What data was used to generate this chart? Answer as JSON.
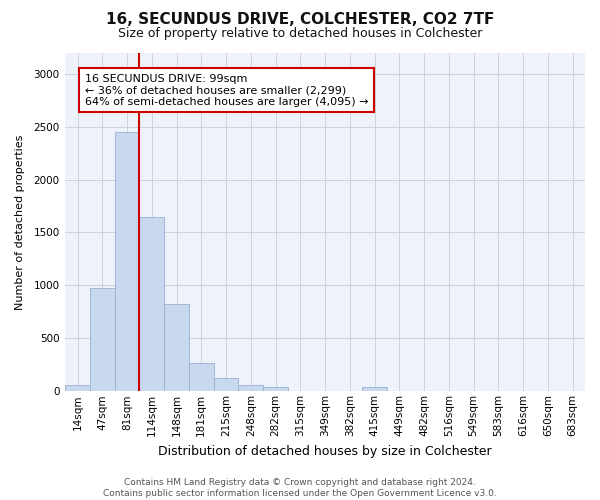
{
  "title_line1": "16, SECUNDUS DRIVE, COLCHESTER, CO2 7TF",
  "title_line2": "Size of property relative to detached houses in Colchester",
  "xlabel": "Distribution of detached houses by size in Colchester",
  "ylabel": "Number of detached properties",
  "bar_labels": [
    "14sqm",
    "47sqm",
    "81sqm",
    "114sqm",
    "148sqm",
    "181sqm",
    "215sqm",
    "248sqm",
    "282sqm",
    "315sqm",
    "349sqm",
    "382sqm",
    "415sqm",
    "449sqm",
    "482sqm",
    "516sqm",
    "549sqm",
    "583sqm",
    "616sqm",
    "650sqm",
    "683sqm"
  ],
  "bar_values": [
    60,
    980,
    2450,
    1650,
    820,
    270,
    130,
    55,
    45,
    0,
    0,
    0,
    40,
    0,
    0,
    0,
    0,
    0,
    0,
    0,
    0
  ],
  "bar_color": "#c8d8ef",
  "bar_edge_color": "#9ab0d0",
  "vline_index": 2.5,
  "annotation_text": "16 SECUNDUS DRIVE: 99sqm\n← 36% of detached houses are smaller (2,299)\n64% of semi-detached houses are larger (4,095) →",
  "annotation_box_facecolor": "#ffffff",
  "annotation_box_edgecolor": "#cc0000",
  "vline_color": "#cc0000",
  "ylim": [
    0,
    3200
  ],
  "yticks": [
    0,
    500,
    1000,
    1500,
    2000,
    2500,
    3000
  ],
  "grid_color": "#d0d0d0",
  "fig_facecolor": "#ffffff",
  "plot_facecolor": "#eef2fb",
  "footer_line1": "Contains HM Land Registry data © Crown copyright and database right 2024.",
  "footer_line2": "Contains public sector information licensed under the Open Government Licence v3.0.",
  "title_fontsize": 11,
  "subtitle_fontsize": 9,
  "ylabel_fontsize": 8,
  "xlabel_fontsize": 9,
  "tick_fontsize": 7.5,
  "annotation_fontsize": 8,
  "footer_fontsize": 6.5
}
